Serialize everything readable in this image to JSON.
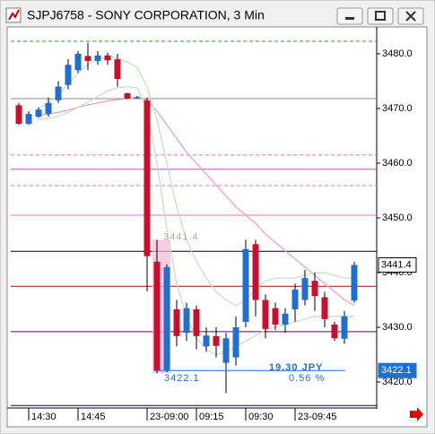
{
  "chart_data": {
    "type": "candlestick",
    "title": "SJPJ6758 - SONY CORPORATION, 3 Min",
    "categories": [
      null,
      "14:30",
      null,
      null,
      null,
      null,
      "14:45",
      null,
      null,
      null,
      null,
      null,
      null,
      "23-09:00",
      null,
      null,
      null,
      null,
      "09:15",
      null,
      null,
      null,
      null,
      "09:30",
      null,
      null,
      null,
      null,
      "23-09:45",
      null,
      null,
      null,
      null,
      null,
      null
    ],
    "open": [
      3470.6,
      3467.2,
      3468.5,
      3469,
      3471.5,
      3474.3,
      3477,
      3479.6,
      3478.7,
      3479.7,
      3479,
      3472.8,
      3472,
      3471.5,
      3442,
      3422.2,
      3433.3,
      3429,
      3433.3,
      3426.5,
      3428.4,
      3423.5,
      3424.5,
      3431,
      3445.2,
      3435,
      3433.5,
      3430.5,
      3433.3,
      3435,
      3438.5,
      3435.5,
      3430.5,
      3427.9,
      3434.9
    ],
    "high": [
      3471,
      3469.5,
      3470.2,
      3472,
      3475,
      3479,
      3480.5,
      3482,
      3480.5,
      3480.2,
      3480,
      3472.9,
      3472.3,
      3472,
      3446,
      3441.5,
      3435,
      3434.5,
      3434,
      3430,
      3430,
      3429,
      3432,
      3446,
      3446,
      3436,
      3434.5,
      3433.5,
      3438,
      3440.5,
      3440,
      3436.5,
      3431,
      3433,
      3442
    ],
    "low": [
      3467,
      3467,
      3468.3,
      3468.5,
      3471,
      3473.5,
      3476.5,
      3477,
      3478,
      3478,
      3474,
      3471.7,
      3471.8,
      3436.6,
      3421.6,
      3421.8,
      3426.5,
      3427.5,
      3426,
      3425.5,
      3424.5,
      3418,
      3423,
      3430,
      3432,
      3428,
      3429.5,
      3429,
      3431,
      3434,
      3433,
      3430,
      3427.5,
      3427,
      3434.5
    ],
    "close": [
      3467.2,
      3469,
      3469.8,
      3471,
      3474,
      3478,
      3480,
      3478.7,
      3479.7,
      3478.8,
      3475.4,
      3471.8,
      3472.1,
      3443,
      3422.1,
      3441,
      3428.4,
      3433.5,
      3428.4,
      3428.5,
      3426.6,
      3428,
      3430,
      3444.3,
      3435,
      3429.7,
      3430.5,
      3432.5,
      3436.9,
      3439,
      3435.7,
      3431.5,
      3428,
      3432,
      3441.4
    ],
    "up_color": "#1f6fd1",
    "down_color": "#c8102e",
    "series": [
      {
        "color": "#f2a0c4",
        "values": [
          null,
          null,
          3468.8,
          3469,
          3469.3,
          3469.7,
          3470.2,
          3470.7,
          3471,
          3471.4,
          3471.6,
          3471.8,
          3472,
          3471.5,
          3469.5,
          3467,
          3464.5,
          3462,
          3460,
          3458,
          3456,
          3454,
          3452,
          3450.5,
          3449,
          3447,
          3445.5,
          3444,
          3442.5,
          3441,
          3439.5,
          3438,
          3436.5,
          3435,
          3434
        ]
      },
      {
        "color": "#c8e0c8",
        "values": [
          null,
          null,
          3470,
          3471,
          3472.5,
          3474.5,
          3476.5,
          3478,
          3479,
          3479.5,
          3479.3,
          3478.5,
          3477.5,
          3474,
          3468,
          3460,
          3452,
          3446,
          3442,
          3439,
          3436.5,
          3435,
          3434,
          3435,
          3437,
          3438.5,
          3439,
          3439,
          3439,
          3439.5,
          3440,
          3440,
          3439.5,
          3439,
          3439
        ]
      },
      {
        "color": "#c8e0c8",
        "values": [
          null,
          null,
          3468,
          3468.2,
          3468.6,
          3469.3,
          3470.2,
          3471.2,
          3472.2,
          3473.2,
          3473.8,
          3474,
          3473.8,
          3470,
          3460,
          3448,
          3438,
          3432,
          3428,
          3426,
          3425,
          3425.5,
          3426.5,
          3427.5,
          3428.5,
          3429.5,
          3430,
          3430.5,
          3431,
          3431.5,
          3432,
          3432,
          3432,
          3432,
          3432
        ]
      }
    ],
    "levels": [
      {
        "value": 3482.3,
        "color": "#2ca02c",
        "style": "dashed"
      },
      {
        "value": 3471.8,
        "color": "#888888",
        "style": "solid"
      },
      {
        "value": 3461.5,
        "color": "#e070c0",
        "style": "dashed"
      },
      {
        "value": 3458.9,
        "color": "#d040d0",
        "style": "solid"
      },
      {
        "value": 3455.9,
        "color": "#e070c0",
        "style": "dashed"
      },
      {
        "value": 3450.5,
        "color": "#e070c0",
        "style": "solid"
      },
      {
        "value": 3443.9,
        "color": "#000000",
        "style": "solid"
      },
      {
        "value": 3437.5,
        "color": "#a01010",
        "style": "solid"
      },
      {
        "value": 3429.2,
        "color": "#600060",
        "style": "solid"
      },
      {
        "value": 3415.7,
        "color": "#000080",
        "style": "solid"
      }
    ],
    "ylim": [
      3415.25,
      3484.59
    ],
    "yticks": [
      {
        "value": 3420,
        "label": "3420.0"
      },
      {
        "value": 3430,
        "label": "3430.0"
      },
      {
        "value": 3440,
        "label": "3440.0"
      },
      {
        "value": 3450,
        "label": "3450.0"
      },
      {
        "value": 3460,
        "label": "3460.0"
      },
      {
        "value": 3470,
        "label": "3470.0"
      },
      {
        "value": 3480,
        "label": "3480.0"
      }
    ],
    "price_labels": [
      {
        "value": 3441.4,
        "label": "3441.4",
        "style": "last"
      },
      {
        "value": 3422.1,
        "label": "3422.1",
        "style": "marker"
      }
    ],
    "annotations": [
      "3441.4",
      "3422.1",
      "19.30 JPY",
      "0.56 %"
    ]
  }
}
